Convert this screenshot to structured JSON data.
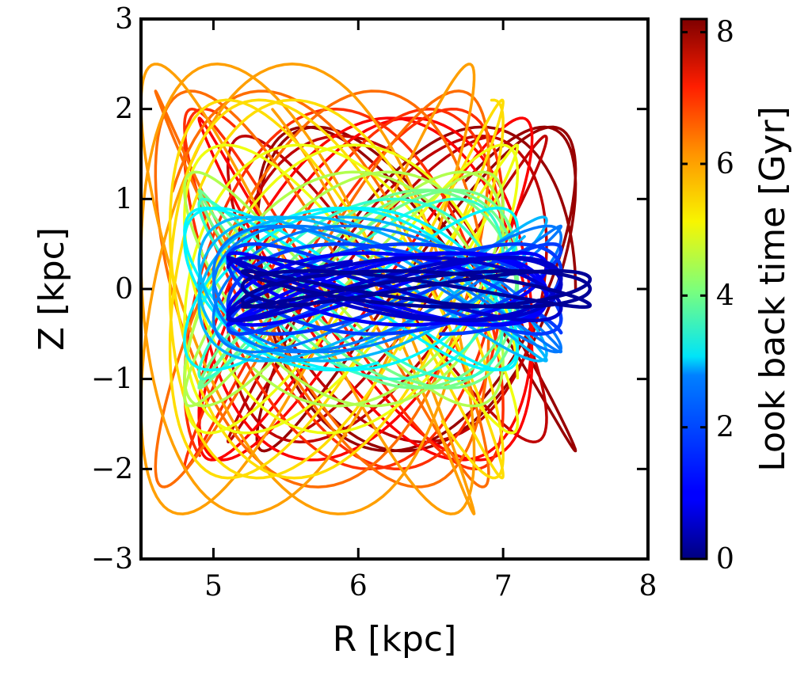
{
  "chart_data": {
    "type": "line",
    "title": "",
    "xlabel": "R [kpc]",
    "ylabel": "Z [kpc]",
    "xlim": [
      4.5,
      8
    ],
    "ylim": [
      -3,
      3
    ],
    "xticks": [
      5,
      6,
      7,
      8
    ],
    "yticks": [
      -3,
      -2,
      -1,
      0,
      1,
      2,
      3
    ],
    "xtick_labels": [
      "5",
      "6",
      "7",
      "8"
    ],
    "ytick_labels": [
      "−3",
      "−2",
      "−1",
      "0",
      "1",
      "2",
      "3"
    ],
    "grid": false,
    "colorbar": {
      "label": "Look back time [Gyr]",
      "colormap": "jet",
      "range": [
        0,
        8.2
      ],
      "ticks": [
        0,
        2,
        4,
        6,
        8
      ],
      "tick_labels": [
        "0",
        "2",
        "4",
        "6",
        "8"
      ]
    },
    "series": [
      {
        "lookback_gyr": 8.0,
        "r_range": [
          5.3,
          7.5
        ],
        "z_amp": 1.8
      },
      {
        "lookback_gyr": 7.7,
        "r_range": [
          5.1,
          7.3
        ],
        "z_amp": 1.7
      },
      {
        "lookback_gyr": 7.2,
        "r_range": [
          4.9,
          7.2
        ],
        "z_amp": 1.9
      },
      {
        "lookback_gyr": 6.8,
        "r_range": [
          4.8,
          7.0
        ],
        "z_amp": 2.0
      },
      {
        "lookback_gyr": 6.3,
        "r_range": [
          4.6,
          6.9
        ],
        "z_amp": 2.2
      },
      {
        "lookback_gyr": 5.9,
        "r_range": [
          4.5,
          6.8
        ],
        "z_amp": 2.5
      },
      {
        "lookback_gyr": 5.4,
        "r_range": [
          4.7,
          7.0
        ],
        "z_amp": 2.1
      },
      {
        "lookback_gyr": 5.0,
        "r_range": [
          4.8,
          7.1
        ],
        "z_amp": 1.6
      },
      {
        "lookback_gyr": 4.5,
        "r_range": [
          4.8,
          7.0
        ],
        "z_amp": 1.3
      },
      {
        "lookback_gyr": 4.0,
        "r_range": [
          4.9,
          7.1
        ],
        "z_amp": 1.1
      },
      {
        "lookback_gyr": 3.5,
        "r_range": [
          4.9,
          7.0
        ],
        "z_amp": 1.0
      },
      {
        "lookback_gyr": 3.0,
        "r_range": [
          4.8,
          7.1
        ],
        "z_amp": 0.9
      },
      {
        "lookback_gyr": 2.5,
        "r_range": [
          4.9,
          7.3
        ],
        "z_amp": 0.8
      },
      {
        "lookback_gyr": 2.0,
        "r_range": [
          5.0,
          7.4
        ],
        "z_amp": 0.7
      },
      {
        "lookback_gyr": 1.5,
        "r_range": [
          5.1,
          7.4
        ],
        "z_amp": 0.5
      },
      {
        "lookback_gyr": 1.0,
        "r_range": [
          5.1,
          7.3
        ],
        "z_amp": 0.4
      },
      {
        "lookback_gyr": 0.6,
        "r_range": [
          5.1,
          7.4
        ],
        "z_amp": 0.35
      },
      {
        "lookback_gyr": 0.2,
        "r_range": [
          5.2,
          7.6
        ],
        "z_amp": 0.2
      }
    ]
  }
}
